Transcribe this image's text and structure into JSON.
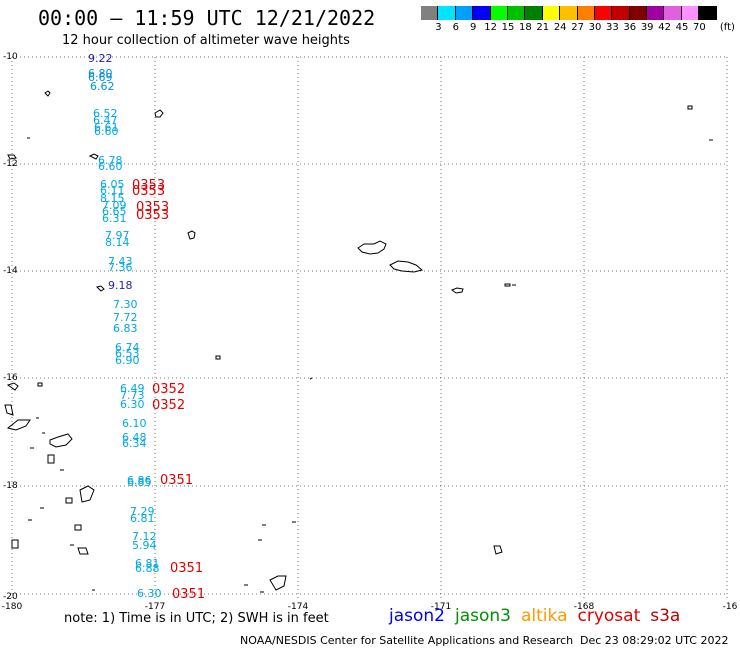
{
  "title": "00:00 – 11:59 UTC 12/21/2022",
  "subtitle": "12 hour collection of altimeter wave heights",
  "scale": {
    "colors": [
      "#808080",
      "#00e5ff",
      "#00a0ff",
      "#0000ff",
      "#00ff00",
      "#00c000",
      "#008000",
      "#ffff00",
      "#ffc000",
      "#ff8000",
      "#ff0000",
      "#c00000",
      "#800000",
      "#a000a0",
      "#e060e0",
      "#ff90ff",
      "#000000"
    ],
    "labels": [
      "3",
      "6",
      "9",
      "12",
      "15",
      "18",
      "21",
      "24",
      "27",
      "30",
      "33",
      "36",
      "39",
      "42",
      "45",
      "70"
    ],
    "unit": "(ft)"
  },
  "axes": {
    "lon_ticks": [
      "-180",
      "-177",
      "-174",
      "-171",
      "-168",
      "-16"
    ],
    "lat_ticks": [
      "-10",
      "-12",
      "-14",
      "-16",
      "-18",
      "-20"
    ]
  },
  "observations": [
    {
      "v": "9.22",
      "c": "#2020c0"
    },
    {
      "v": "6.80",
      "c": "#0090e0"
    },
    {
      "v": "6.69",
      "c": "#0090e0"
    },
    {
      "v": "6.62",
      "c": "#0090e0"
    },
    {
      "v": "6.52",
      "c": "#00a8e8"
    },
    {
      "v": "6.47",
      "c": "#00a8e8"
    },
    {
      "v": "6.61",
      "c": "#00a8e8"
    },
    {
      "v": "6.60",
      "c": "#00a8e8"
    },
    {
      "v": "6.78",
      "c": "#00a8e8"
    },
    {
      "v": "6.60",
      "c": "#00a8e8"
    },
    {
      "v": "6.05",
      "c": "#00a8e8"
    },
    {
      "v": "6.11",
      "c": "#00a8e8"
    },
    {
      "v": "8.15",
      "c": "#00a8e8"
    },
    {
      "v": "7.09",
      "c": "#00a8e8"
    },
    {
      "v": "6.65",
      "c": "#00a8e8"
    },
    {
      "v": "6.31",
      "c": "#00a8e8"
    },
    {
      "v": "7.97",
      "c": "#00a8e8"
    },
    {
      "v": "8.14",
      "c": "#00a8e8"
    },
    {
      "v": "7.43",
      "c": "#00a8e8"
    },
    {
      "v": "7.36",
      "c": "#00a8e8"
    },
    {
      "v": "9.18",
      "c": "#2020c0"
    },
    {
      "v": "7.30",
      "c": "#00a8e8"
    },
    {
      "v": "7.72",
      "c": "#00a8e8"
    },
    {
      "v": "6.83",
      "c": "#00a8e8"
    },
    {
      "v": "6.74",
      "c": "#00a8e8"
    },
    {
      "v": "6.53",
      "c": "#00a8e8"
    },
    {
      "v": "6.90",
      "c": "#00a8e8"
    },
    {
      "v": "6.49",
      "c": "#00a8e8"
    },
    {
      "v": "7.73",
      "c": "#00a8e8"
    },
    {
      "v": "6.30",
      "c": "#00a8e8"
    },
    {
      "v": "6.10",
      "c": "#00a8e8"
    },
    {
      "v": "6.48",
      "c": "#00a8e8"
    },
    {
      "v": "6.34",
      "c": "#00a8e8"
    },
    {
      "v": "6.86",
      "c": "#00a8e8"
    },
    {
      "v": "6.85",
      "c": "#00a8e8"
    },
    {
      "v": "7.29",
      "c": "#00a8e8"
    },
    {
      "v": "6.81",
      "c": "#00a8e8"
    },
    {
      "v": "7.12",
      "c": "#00a8e8"
    },
    {
      "v": "5.94",
      "c": "#00a8e8"
    },
    {
      "v": "6.81",
      "c": "#00a8e8"
    },
    {
      "v": "6.88",
      "c": "#00a8e8"
    },
    {
      "v": "6.30",
      "c": "#00a8e8"
    }
  ],
  "pass_labels": [
    "0353",
    "0353",
    "0353",
    "0353",
    "0352",
    "0352",
    "0351",
    "0351",
    "0351"
  ],
  "note": "note: 1) Time is in UTC; 2) SWH is in feet",
  "legend": [
    {
      "name": "jason2",
      "color": "#0000ff"
    },
    {
      "name": "jason3",
      "color": "#009000"
    },
    {
      "name": "altika",
      "color": "#ff9900"
    },
    {
      "name": "cryosat",
      "color": "#e00000"
    },
    {
      "name": "s3a",
      "color": "#c00000"
    }
  ],
  "footer_left": "NOAA/NESDIS Center for Satellite Applications and Research",
  "footer_right": "Dec 23 08:29:02 UTC 2022"
}
